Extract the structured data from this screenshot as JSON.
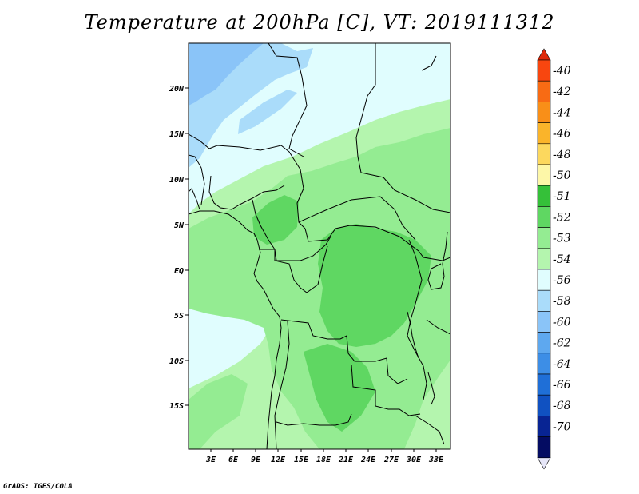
{
  "title": "Temperature at 200hPa [C], VT: 2019111312",
  "credit": "GrADS: IGES/COLA",
  "map": {
    "lat_ticks": [
      "20N",
      "15N",
      "10N",
      "5N",
      "EQ",
      "5S",
      "10S",
      "15S"
    ],
    "lon_ticks": [
      "3E",
      "6E",
      "9E",
      "12E",
      "15E",
      "18E",
      "21E",
      "24E",
      "27E",
      "30E",
      "33E"
    ]
  },
  "colorbar": {
    "labels": [
      "-40",
      "-42",
      "-44",
      "-46",
      "-48",
      "-50",
      "-51",
      "-52",
      "-53",
      "-54",
      "-56",
      "-58",
      "-60",
      "-62",
      "-64",
      "-66",
      "-68",
      "-70"
    ],
    "colors": [
      "#f8460f",
      "#f86b14",
      "#f98f18",
      "#fab42a",
      "#fcd85e",
      "#fdf7a8",
      "#35c039",
      "#5fd762",
      "#94ec92",
      "#b4f5ae",
      "#e0fdfe",
      "#aadcfa",
      "#8ac4f8",
      "#5ea8ef",
      "#3d8ee6",
      "#1f6fd7",
      "#1051c1",
      "#082493",
      "#040c62"
    ],
    "top_arrow_color": "#e02a0a",
    "bottom_arrow_color": "#e6e6f8"
  }
}
